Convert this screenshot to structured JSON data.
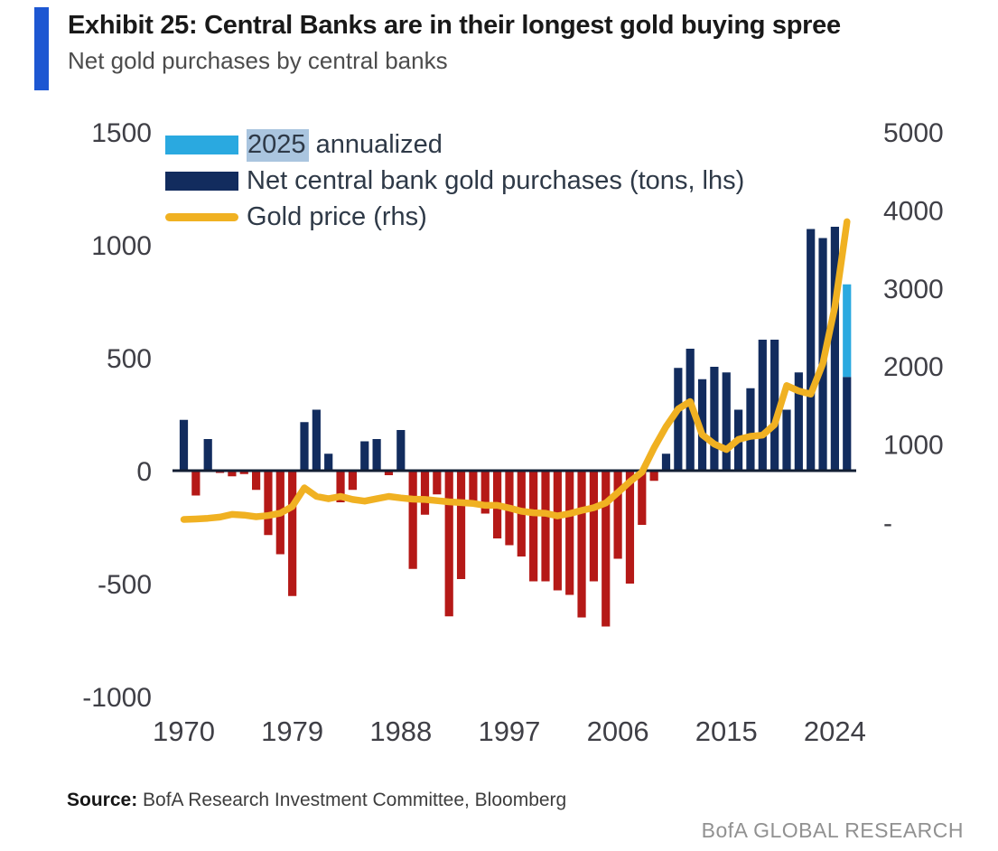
{
  "header": {
    "exhibit_title": "Exhibit 25: Central Banks are in their longest gold buying spree",
    "subtitle": "Net gold purchases by central banks"
  },
  "legend": {
    "position": "top-left",
    "items": [
      {
        "label_highlight": "2025",
        "label_rest": " annualized",
        "swatch_color": "#2aa9e0",
        "swatch_type": "bar"
      },
      {
        "label": "Net central bank gold purchases (tons, lhs)",
        "swatch_color": "#122c5e",
        "swatch_type": "bar"
      },
      {
        "label": "Gold price (rhs)",
        "swatch_color": "#f0b122",
        "swatch_type": "line"
      }
    ]
  },
  "colors": {
    "accent_bar": "#1d57d2",
    "positive_bar": "#122c5e",
    "negative_bar": "#b51917",
    "annualized_bar": "#2aa9e0",
    "gold_line": "#f0b122",
    "highlight_2025": "#aac5df",
    "zero_axis": "#121e33"
  },
  "footer": {
    "source_label": "Source:",
    "source_text": " BofA Research Investment Committee, Bloomberg",
    "brand": "BofA GLOBAL RESEARCH"
  },
  "chart_data": {
    "type": "combo_bar_line",
    "title": "Exhibit 25: Central Banks are in their longest gold buying spree",
    "subtitle": "Net gold purchases by central banks",
    "grid": false,
    "legend_position": "top-left",
    "x": [
      1970,
      1971,
      1972,
      1973,
      1974,
      1975,
      1976,
      1977,
      1978,
      1979,
      1980,
      1981,
      1982,
      1983,
      1984,
      1985,
      1986,
      1987,
      1988,
      1989,
      1990,
      1991,
      1992,
      1993,
      1994,
      1995,
      1996,
      1997,
      1998,
      1999,
      2000,
      2001,
      2002,
      2003,
      2004,
      2005,
      2006,
      2007,
      2008,
      2009,
      2010,
      2011,
      2012,
      2013,
      2014,
      2015,
      2016,
      2017,
      2018,
      2019,
      2020,
      2021,
      2022,
      2023,
      2024,
      2025
    ],
    "series": [
      {
        "name": "Net central bank gold purchases (tons, lhs)",
        "type": "bar",
        "axis": "left",
        "color": "#122c5e",
        "negative_color": "#b51917",
        "values": [
          225,
          -110,
          140,
          -10,
          -25,
          -15,
          -85,
          -285,
          -370,
          -555,
          215,
          270,
          75,
          -140,
          -85,
          130,
          140,
          -20,
          180,
          -435,
          -195,
          -105,
          -645,
          -480,
          -150,
          -190,
          -300,
          -330,
          -380,
          -490,
          -490,
          -530,
          -550,
          -650,
          -490,
          -690,
          -390,
          -500,
          -240,
          -45,
          75,
          455,
          540,
          405,
          460,
          435,
          270,
          365,
          580,
          580,
          270,
          435,
          1070,
          1030,
          1080,
          415
        ]
      },
      {
        "name": "2025 annualized",
        "type": "bar_extension",
        "axis": "left",
        "color": "#2aa9e0",
        "year": 2025,
        "from": 415,
        "to": 825
      },
      {
        "name": "Gold price (rhs)",
        "type": "line",
        "axis": "right",
        "color": "#f0b122",
        "values": [
          35,
          40,
          50,
          65,
          100,
          90,
          70,
          85,
          115,
          200,
          440,
          330,
          300,
          330,
          290,
          270,
          300,
          330,
          310,
          295,
          290,
          275,
          260,
          250,
          240,
          215,
          215,
          180,
          140,
          120,
          115,
          80,
          110,
          150,
          185,
          245,
          380,
          520,
          640,
          950,
          1225,
          1450,
          1545,
          1120,
          1000,
          930,
          1060,
          1100,
          1115,
          1250,
          1750,
          1680,
          1640,
          2030,
          2760,
          3850
        ]
      }
    ],
    "left_axis": {
      "range": [
        -1000,
        1500
      ],
      "ticks": [
        {
          "label": "1500",
          "value": 1500
        },
        {
          "label": "1000",
          "value": 1000
        },
        {
          "label": "500",
          "value": 500
        },
        {
          "label": "0",
          "value": 0
        },
        {
          "label": "-500",
          "value": -500
        },
        {
          "label": "-1000",
          "value": -1000
        }
      ]
    },
    "right_axis": {
      "range": [
        0,
        5000
      ],
      "ticks": [
        {
          "label": "5000",
          "value": 5000
        },
        {
          "label": "4000",
          "value": 4000
        },
        {
          "label": "3000",
          "value": 3000
        },
        {
          "label": "2000",
          "value": 2000
        },
        {
          "label": "1000",
          "value": 1000
        },
        {
          "label": "-",
          "value": 0
        }
      ]
    },
    "x_axis": {
      "ticks": [
        1970,
        1979,
        1988,
        1997,
        2006,
        2015,
        2024
      ]
    }
  }
}
